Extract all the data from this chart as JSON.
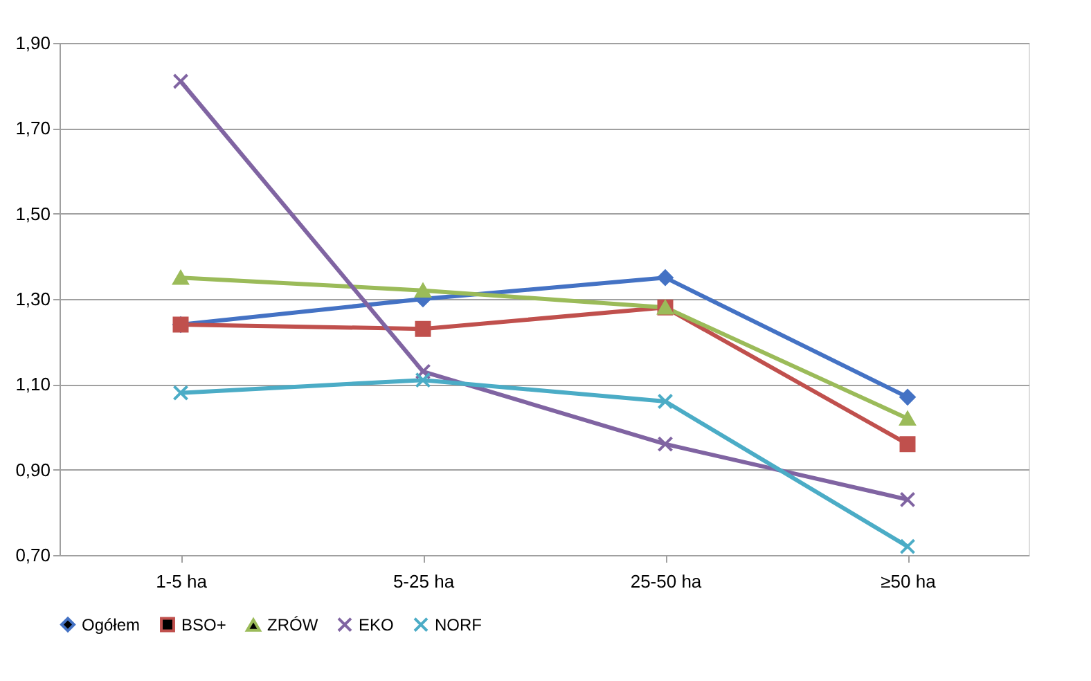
{
  "chart_data": {
    "type": "line",
    "categories": [
      "1-5 ha",
      "5-25 ha",
      "25-50 ha",
      "≥50 ha"
    ],
    "series": [
      {
        "name": "Ogółem",
        "color": "#4472c4",
        "marker": "diamond",
        "values": [
          1.24,
          1.3,
          1.35,
          1.07
        ]
      },
      {
        "name": "BSO+",
        "color": "#c0504d",
        "marker": "square",
        "values": [
          1.24,
          1.23,
          1.28,
          0.96
        ]
      },
      {
        "name": "ZRÓW",
        "color": "#9bbb59",
        "marker": "triangle",
        "values": [
          1.35,
          1.32,
          1.28,
          1.02
        ]
      },
      {
        "name": "EKO",
        "color": "#8064a2",
        "marker": "cross",
        "values": [
          1.81,
          1.13,
          0.96,
          0.83
        ]
      },
      {
        "name": "NORF",
        "color": "#4bacc6",
        "marker": "cross",
        "values": [
          1.08,
          1.11,
          1.06,
          0.72
        ]
      }
    ],
    "ylim": [
      0.7,
      1.9
    ],
    "yticks": [
      {
        "value": 0.7,
        "label": "0,70"
      },
      {
        "value": 0.9,
        "label": "0,90"
      },
      {
        "value": 1.1,
        "label": "1,10"
      },
      {
        "value": 1.3,
        "label": "1,30"
      },
      {
        "value": 1.5,
        "label": "1,50"
      },
      {
        "value": 1.7,
        "label": "1,70"
      },
      {
        "value": 1.9,
        "label": "1,90"
      }
    ],
    "grid": "y",
    "legend": "bottom",
    "line_style": "solid"
  }
}
